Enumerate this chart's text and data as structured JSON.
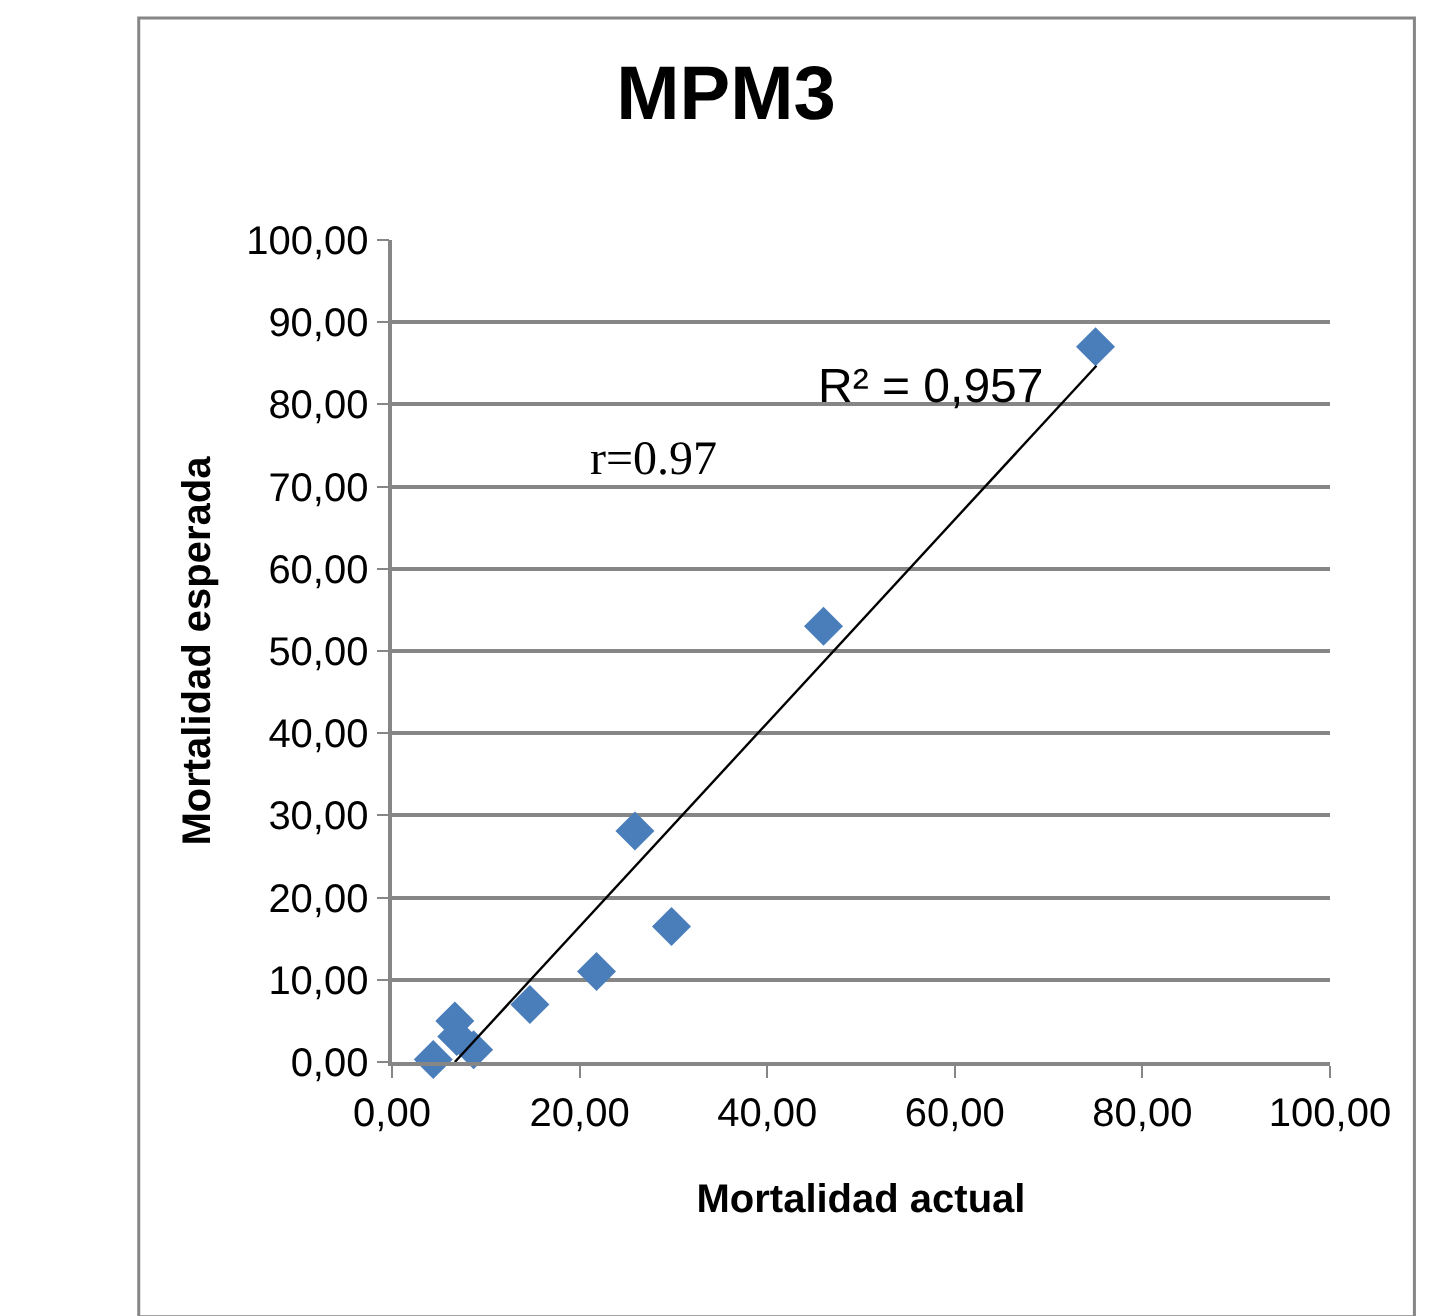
{
  "chart_data": {
    "type": "scatter",
    "title": "MPM3",
    "xlabel": "Mortalidad actual",
    "ylabel": "Mortalidad esperada",
    "series": [
      {
        "color": "#4a7ebb",
        "marker": "diamond",
        "x": [
          4.4,
          6.7,
          6.9,
          8.7,
          14.7,
          21.8,
          29.8,
          25.9,
          46.0,
          75.0
        ],
        "values": [
          0.3,
          5.0,
          3.1,
          1.5,
          7.0,
          11.0,
          16.5,
          28.1,
          53.0,
          87.0
        ]
      },
      {
        "type": "line",
        "color": "#000000",
        "marker": "none",
        "x": [
          6.7,
          75.1
        ],
        "values": [
          0,
          84.7
        ]
      }
    ],
    "annotations": [
      "R² = 0,957",
      "r=0.97"
    ],
    "xlim": [
      0,
      100
    ],
    "ylim": [
      0,
      100
    ],
    "xticks": [
      {
        "value": 0,
        "label": "0,00"
      },
      {
        "value": 20,
        "label": "20,00"
      },
      {
        "value": 40,
        "label": "40,00"
      },
      {
        "value": 60,
        "label": "60,00"
      },
      {
        "value": 80,
        "label": "80,00"
      },
      {
        "value": 100,
        "label": "100,00"
      }
    ],
    "yticks": [
      {
        "value": 0,
        "label": "0,00"
      },
      {
        "value": 10,
        "label": "10,00"
      },
      {
        "value": 20,
        "label": "20,00"
      },
      {
        "value": 30,
        "label": "30,00"
      },
      {
        "value": 40,
        "label": "40,00"
      },
      {
        "value": 50,
        "label": "50,00"
      },
      {
        "value": 60,
        "label": "60,00"
      },
      {
        "value": 70,
        "label": "70,00"
      },
      {
        "value": 80,
        "label": "80,00"
      },
      {
        "value": 90,
        "label": "90,00"
      },
      {
        "value": 100,
        "label": "100,00"
      }
    ],
    "grid": "y"
  }
}
